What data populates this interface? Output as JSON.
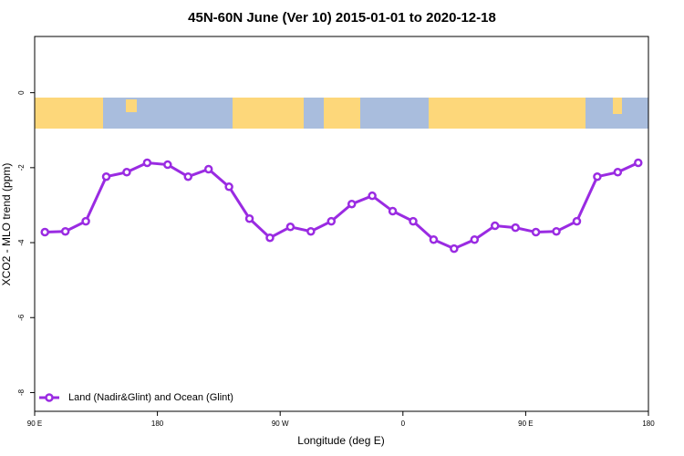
{
  "chart_data": {
    "type": "line",
    "title": "45N-60N June (Ver 10)   2015-01-01 to 2020-12-18",
    "x_label": "Longitude (deg E)",
    "y_label": "XCO2 - MLO trend (ppm)",
    "x": [
      97.5,
      112.5,
      127.5,
      142.5,
      157.5,
      172.5,
      187.5,
      202.5,
      217.5,
      232.5,
      247.5,
      262.5,
      277.5,
      292.5,
      307.5,
      322.5,
      337.5,
      352.5,
      367.5,
      382.5,
      397.5,
      412.5,
      427.5,
      442.5,
      457.5,
      472.5,
      487.5,
      502.5,
      517.5,
      532.5
    ],
    "series": [
      {
        "name": "Land (Nadir&Glint) and Ocean (Glint)",
        "color": "#9a2be2",
        "values": [
          -3.72,
          -3.7,
          -3.43,
          -2.24,
          -2.12,
          -1.87,
          -1.92,
          -2.24,
          -2.04,
          -2.51,
          -3.36,
          -3.87,
          -3.58,
          -3.7,
          -3.43,
          -2.97,
          -2.75,
          -3.16,
          -3.43,
          -3.92,
          -4.16,
          -3.92,
          -3.55,
          -3.6,
          -3.72,
          -3.7,
          -3.43,
          -2.24,
          -2.12,
          -1.87
        ]
      }
    ],
    "xlim": [
      90,
      540
    ],
    "xticks": [
      {
        "value": 90,
        "label": "90 E"
      },
      {
        "value": 180,
        "label": "180"
      },
      {
        "value": 270,
        "label": "90 W"
      },
      {
        "value": 360,
        "label": "0"
      },
      {
        "value": 450,
        "label": "90 E"
      },
      {
        "value": 540,
        "label": "180"
      }
    ],
    "ylim": [
      -8.5,
      1.5
    ],
    "yticks": [
      0,
      -2,
      -4,
      -6,
      -8
    ],
    "legend": "bottom-left"
  }
}
